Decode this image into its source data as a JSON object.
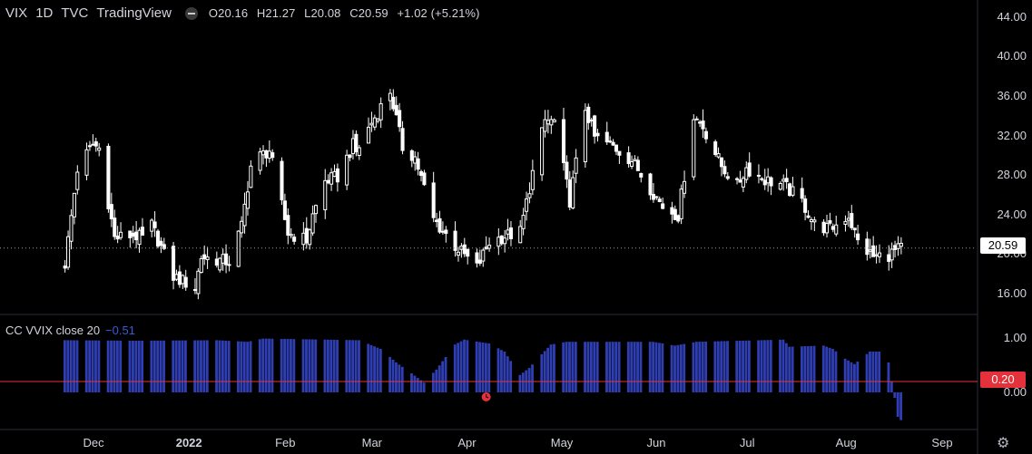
{
  "header": {
    "symbol": "VIX",
    "interval": "1D",
    "exchange": "TVC",
    "source": "TradingView",
    "open": "O20.16",
    "high": "H21.27",
    "low": "L20.08",
    "close": "C20.59",
    "change": "+1.02 (+5.21%)"
  },
  "indicator": {
    "label": "CC VVIX close 20",
    "value": "−0.51"
  },
  "price_tag": "20.59",
  "level_tag": "0.20",
  "colors": {
    "candle": "#ffffff",
    "histogram": "#2f3fb3",
    "level_line": "#e5313b",
    "background": "#000000"
  },
  "icons": [
    "eye-hidden-icon",
    "settings-gear-icon",
    "alert-clock-icon"
  ],
  "chart_data": [
    {
      "type": "candlestick",
      "title": "VIX · 1D · TVC",
      "ylim": [
        14.5,
        45
      ],
      "y_ticks": [
        "16.00",
        "20.00",
        "24.00",
        "28.00",
        "32.00",
        "36.00",
        "40.00",
        "44.00"
      ],
      "x_ticks": [
        "Dec",
        "2022",
        "Feb",
        "Mar",
        "Apr",
        "May",
        "Jun",
        "Jul",
        "Aug",
        "Sep"
      ],
      "last_close": 20.59,
      "close_path": [
        [
          "2021-11-22",
          19.0
        ],
        [
          "2021-11-26",
          28.6
        ],
        [
          "2021-12-01",
          31.1
        ],
        [
          "2021-12-03",
          30.7
        ],
        [
          "2021-12-08",
          21.6
        ],
        [
          "2021-12-14",
          21.9
        ],
        [
          "2021-12-17",
          21.6
        ],
        [
          "2021-12-20",
          22.9
        ],
        [
          "2021-12-27",
          17.7
        ],
        [
          "2022-01-03",
          16.6
        ],
        [
          "2022-01-05",
          19.7
        ],
        [
          "2022-01-10",
          19.4
        ],
        [
          "2022-01-14",
          19.2
        ],
        [
          "2022-01-18",
          22.8
        ],
        [
          "2022-01-21",
          28.9
        ],
        [
          "2022-01-24",
          29.9
        ],
        [
          "2022-01-27",
          30.5
        ],
        [
          "2022-02-02",
          22.1
        ],
        [
          "2022-02-08",
          21.4
        ],
        [
          "2022-02-10",
          23.9
        ],
        [
          "2022-02-14",
          27.4
        ],
        [
          "2022-02-18",
          27.8
        ],
        [
          "2022-02-23",
          31.0
        ],
        [
          "2022-02-24",
          30.3
        ],
        [
          "2022-03-01",
          33.3
        ],
        [
          "2022-03-07",
          36.5
        ],
        [
          "2022-03-11",
          30.8
        ],
        [
          "2022-03-15",
          29.8
        ],
        [
          "2022-03-21",
          23.5
        ],
        [
          "2022-03-28",
          20.8
        ],
        [
          "2022-04-04",
          18.6
        ],
        [
          "2022-04-08",
          21.2
        ],
        [
          "2022-04-13",
          21.8
        ],
        [
          "2022-04-18",
          22.2
        ],
        [
          "2022-04-22",
          28.2
        ],
        [
          "2022-04-26",
          33.5
        ],
        [
          "2022-04-29",
          33.4
        ],
        [
          "2022-05-04",
          25.4
        ],
        [
          "2022-05-09",
          34.8
        ],
        [
          "2022-05-12",
          31.8
        ],
        [
          "2022-05-18",
          30.9
        ],
        [
          "2022-05-24",
          29.5
        ],
        [
          "2022-05-31",
          26.2
        ],
        [
          "2022-06-03",
          24.8
        ],
        [
          "2022-06-08",
          23.9
        ],
        [
          "2022-06-13",
          34.0
        ],
        [
          "2022-06-16",
          32.9
        ],
        [
          "2022-06-22",
          28.9
        ],
        [
          "2022-06-27",
          26.9
        ],
        [
          "2022-06-30",
          28.7
        ],
        [
          "2022-07-06",
          27.5
        ],
        [
          "2022-07-12",
          27.0
        ],
        [
          "2022-07-18",
          25.3
        ],
        [
          "2022-07-22",
          23.0
        ],
        [
          "2022-07-27",
          22.5
        ],
        [
          "2022-08-02",
          23.9
        ],
        [
          "2022-08-05",
          21.2
        ],
        [
          "2022-08-10",
          19.7
        ],
        [
          "2022-08-15",
          19.9
        ],
        [
          "2022-08-19",
          20.6
        ]
      ]
    },
    {
      "type": "histogram",
      "series": [
        {
          "name": "CC VVIX close 20",
          "last": -0.51
        }
      ],
      "ylim": [
        -0.55,
        1.15
      ],
      "y_ticks": [
        "0.00",
        "1.00"
      ],
      "level": 0.2,
      "path": [
        [
          "2021-11-22",
          0.96
        ],
        [
          "2021-12-15",
          0.95
        ],
        [
          "2022-01-10",
          0.96
        ],
        [
          "2022-01-20",
          0.93
        ],
        [
          "2022-01-25",
          0.99
        ],
        [
          "2022-02-25",
          0.96
        ],
        [
          "2022-03-04",
          0.8
        ],
        [
          "2022-03-09",
          0.55
        ],
        [
          "2022-03-14",
          0.35
        ],
        [
          "2022-03-18",
          0.18
        ],
        [
          "2022-03-22",
          0.42
        ],
        [
          "2022-03-28",
          0.88
        ],
        [
          "2022-03-31",
          0.97
        ],
        [
          "2022-04-08",
          0.9
        ],
        [
          "2022-04-13",
          0.75
        ],
        [
          "2022-04-18",
          0.32
        ],
        [
          "2022-04-21",
          0.45
        ],
        [
          "2022-04-25",
          0.7
        ],
        [
          "2022-04-28",
          0.88
        ],
        [
          "2022-05-03",
          0.93
        ],
        [
          "2022-05-31",
          0.93
        ],
        [
          "2022-06-07",
          0.86
        ],
        [
          "2022-06-14",
          0.93
        ],
        [
          "2022-07-12",
          0.97
        ],
        [
          "2022-07-14",
          0.84
        ],
        [
          "2022-07-25",
          0.86
        ],
        [
          "2022-07-28",
          0.8
        ],
        [
          "2022-08-01",
          0.62
        ],
        [
          "2022-08-04",
          0.52
        ],
        [
          "2022-08-09",
          0.75
        ],
        [
          "2022-08-12",
          0.75
        ],
        [
          "2022-08-15",
          0.55
        ],
        [
          "2022-08-16",
          0.2
        ],
        [
          "2022-08-17",
          -0.1
        ],
        [
          "2022-08-18",
          -0.45
        ],
        [
          "2022-08-19",
          -0.51
        ]
      ]
    }
  ]
}
